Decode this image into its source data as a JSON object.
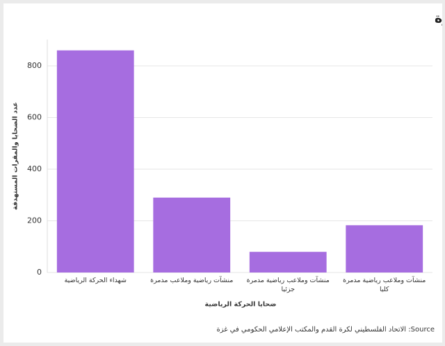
{
  "chart_data": {
    "type": "bar",
    "title": "تدمير المجال الرياضي في غزة",
    "x_label": "ضحايا الحركة الرياضية",
    "y_label": "عدد الضحايا والمقرات المستهدفة",
    "categories": [
      "شهداء الحركة الرياضية",
      "منشآت رياضية وملاعب مدمرة",
      "منشآت وملاعب رياضية مدمرة جزئيا",
      "منشآت وملاعب رياضية مدمرة كليا"
    ],
    "values": [
      860,
      290,
      80,
      183
    ],
    "color": "#a66de0",
    "ylim": [
      0,
      902
    ],
    "yticks": [
      0,
      200,
      400,
      600,
      800
    ],
    "grid": true,
    "source": "Source: الاتحاد الفلسطيني لكرة القدم والمكتب الإعلامي الحكومي في غزة"
  }
}
